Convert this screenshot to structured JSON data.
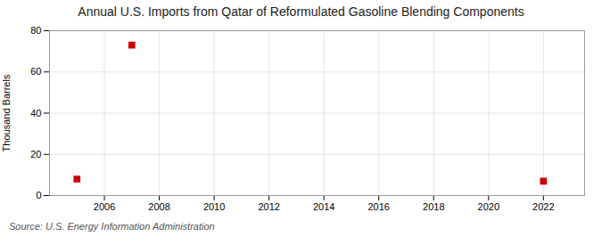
{
  "chart_data": {
    "type": "scatter",
    "title": "Annual U.S. Imports from Qatar of Reformulated Gasoline Blending Components",
    "ylabel": "Thousand Barrels",
    "annotation": "Source: U.S. Energy Information Administration",
    "x": [
      2005,
      2007,
      2022
    ],
    "values": [
      8,
      73,
      7
    ],
    "color": "#cc0000",
    "marker": "square",
    "xlim": [
      2004.0,
      2023.5
    ],
    "ylim": [
      0,
      80
    ],
    "xticks": [
      2006,
      2008,
      2010,
      2012,
      2014,
      2016,
      2018,
      2020,
      2022
    ],
    "yticks": [
      0,
      20,
      40,
      60,
      80
    ],
    "grid": true
  }
}
